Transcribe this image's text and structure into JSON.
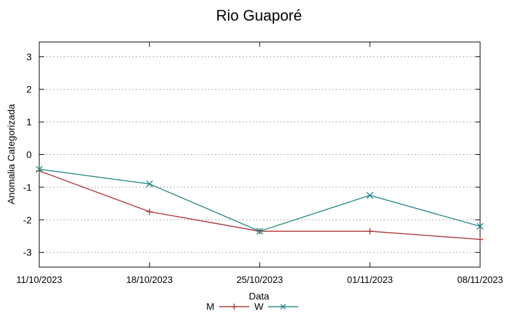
{
  "chart_data": {
    "type": "line",
    "title": "Rio Guaporé",
    "xlabel": "Data",
    "ylabel": "Anomalia Categorizada",
    "categories": [
      "11/10/2023",
      "18/10/2023",
      "25/10/2023",
      "01/11/2023",
      "08/11/2023"
    ],
    "yticks": [
      -3,
      -2,
      -1,
      0,
      1,
      2,
      3
    ],
    "ylim": [
      -3.45,
      3.45
    ],
    "grid": "horizontal-dotted",
    "grid_color": "#a8a8a8",
    "border_color": "#000000",
    "legend_position": "below-xlabel-centered",
    "series": [
      {
        "name": "M",
        "marker": "plus",
        "color": "#b03a3a",
        "values": [
          -0.5,
          -1.75,
          -2.35,
          -2.35,
          -2.6
        ]
      },
      {
        "name": "W",
        "marker": "cross",
        "color": "#278787",
        "values": [
          -0.45,
          -0.9,
          -2.35,
          -1.25,
          -2.2
        ]
      }
    ]
  }
}
